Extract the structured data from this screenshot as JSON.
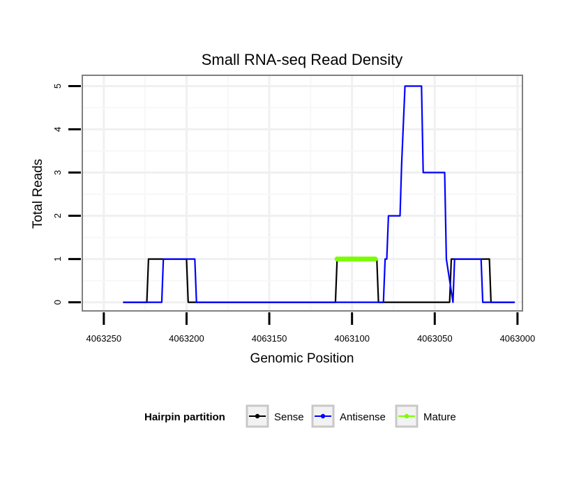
{
  "chart_data": {
    "type": "line",
    "title": "Small RNA-seq Read Density",
    "xlabel": "Genomic Position",
    "ylabel": "Total Reads",
    "xlim": [
      4063263,
      4062997
    ],
    "x_reversed": true,
    "ylim": [
      -0.2,
      5.25
    ],
    "xticks": [
      4063250,
      4063200,
      4063150,
      4063100,
      4063050,
      4063000
    ],
    "xtick_labels": [
      "4063250",
      "4063200",
      "4063150",
      "4063100",
      "4063050",
      "4063000"
    ],
    "yticks": [
      0,
      1,
      2,
      3,
      4,
      5
    ],
    "ytick_labels": [
      "0",
      "1",
      "2",
      "3",
      "4",
      "5"
    ],
    "grid": true,
    "legend": {
      "title": "Hairpin partition",
      "position": "bottom"
    },
    "series": [
      {
        "name": "Sense",
        "color": "#000000",
        "x": [
          4063238,
          4063224,
          4063223,
          4063200,
          4063199,
          4063110,
          4063109,
          4063085,
          4063084,
          4063041,
          4063040,
          4063017,
          4063016,
          4063002
        ],
        "y": [
          0,
          0,
          1,
          1,
          0,
          0,
          1,
          1,
          0,
          0,
          1,
          1,
          0,
          0
        ]
      },
      {
        "name": "Antisense",
        "color": "#0000ff",
        "x": [
          4063238,
          4063215,
          4063214,
          4063195,
          4063194,
          4063081,
          4063080,
          4063079,
          4063078,
          4063071,
          4063070,
          4063068,
          4063066,
          4063065,
          4063058,
          4063057,
          4063053,
          4063052,
          4063044,
          4063043,
          4063039,
          4063038,
          4063022,
          4063021,
          4063002
        ],
        "y": [
          0,
          0,
          1,
          1,
          0,
          0,
          1,
          1,
          2,
          2,
          3.2,
          5,
          5,
          5,
          5,
          3,
          3,
          3,
          3,
          1,
          0,
          1,
          1,
          0,
          0
        ]
      },
      {
        "name": "Mature",
        "color": "#7cfc00",
        "x": [
          4063109,
          4063108,
          4063107,
          4063106,
          4063105,
          4063104,
          4063103,
          4063102,
          4063101,
          4063100,
          4063099,
          4063098,
          4063097,
          4063096,
          4063095,
          4063094,
          4063093,
          4063092,
          4063091,
          4063090,
          4063089,
          4063088,
          4063087,
          4063086
        ],
        "y": [
          1,
          1,
          1,
          1,
          1,
          1,
          1,
          1,
          1,
          1,
          1,
          1,
          1,
          1,
          1,
          1,
          1,
          1,
          1,
          1,
          1,
          1,
          1,
          1
        ]
      }
    ]
  }
}
